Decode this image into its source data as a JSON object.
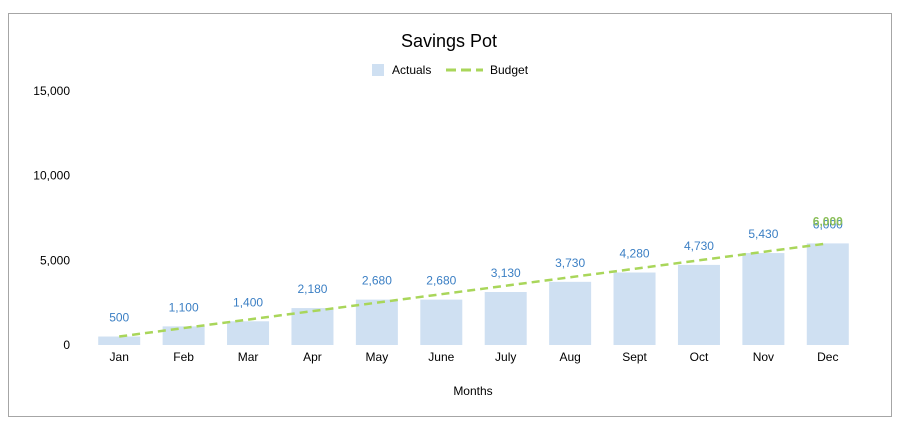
{
  "chart_data": {
    "type": "bar",
    "title": "Savings Pot",
    "xlabel": "Months",
    "ylabel": "",
    "ylim": [
      0,
      15000
    ],
    "yticks": [
      0,
      5000,
      10000,
      15000
    ],
    "ytick_labels": [
      "0",
      "5,000",
      "10,000",
      "15,000"
    ],
    "grid": false,
    "legend_position": "top",
    "categories": [
      "Jan",
      "Feb",
      "Mar",
      "Apr",
      "May",
      "June",
      "July",
      "Aug",
      "Sept",
      "Oct",
      "Nov",
      "Dec"
    ],
    "series": [
      {
        "name": "Actuals",
        "type": "bar",
        "color": "#cfe0f2",
        "values": [
          500,
          1100,
          1400,
          2180,
          2680,
          2680,
          3130,
          3730,
          4280,
          4730,
          5430,
          6000
        ],
        "data_labels": [
          "500",
          "1,100",
          "1,400",
          "2,180",
          "2,680",
          "2,680",
          "3,130",
          "3,730",
          "4,280",
          "4,730",
          "5,430",
          "6,000"
        ],
        "label_color": "#3b7fc4"
      },
      {
        "name": "Budget",
        "type": "line",
        "style": "dashed",
        "color": "#a9d65a",
        "values": [
          500,
          1000,
          1500,
          2000,
          2500,
          3000,
          3500,
          4000,
          4500,
          5000,
          5500,
          6000
        ],
        "data_labels": [
          "",
          "",
          "",
          "",
          "",
          "",
          "",
          "",
          "",
          "",
          "",
          "6,000"
        ],
        "label_color": "#8bbf5a"
      }
    ]
  }
}
